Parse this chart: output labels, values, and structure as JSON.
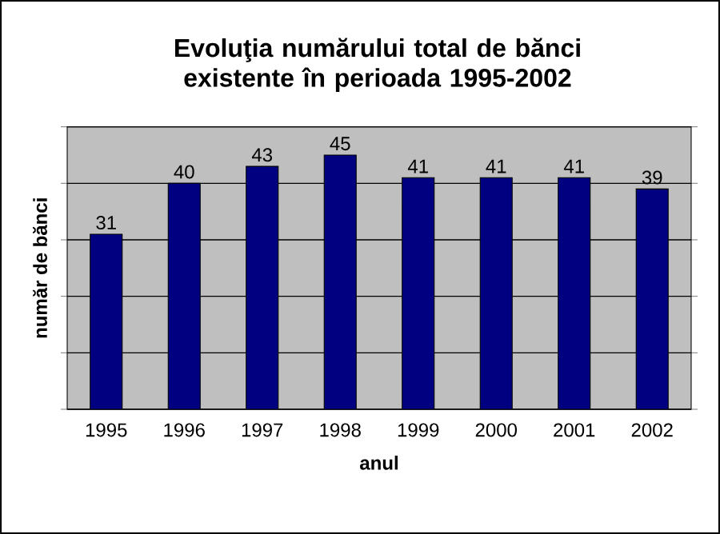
{
  "chart_data": {
    "type": "bar",
    "title": "Evoluţia numărului total de bănci existente în perioada 1995-2002",
    "xlabel": "anul",
    "ylabel": "număr de bănci",
    "categories": [
      "1995",
      "1996",
      "1997",
      "1998",
      "1999",
      "2000",
      "2001",
      "2002"
    ],
    "values": [
      31,
      40,
      43,
      45,
      41,
      41,
      41,
      39
    ],
    "color": "#000080",
    "ylim": [
      0,
      50
    ],
    "yticks": [
      {
        "value": 0,
        "label": null
      },
      {
        "value": 10,
        "label": null
      },
      {
        "value": 20,
        "label": null
      },
      {
        "value": 30,
        "label": null
      },
      {
        "value": 40,
        "label": null
      },
      {
        "value": 50,
        "label": null
      }
    ],
    "grid": "y",
    "tick_labels": "x",
    "data_labels": true
  }
}
